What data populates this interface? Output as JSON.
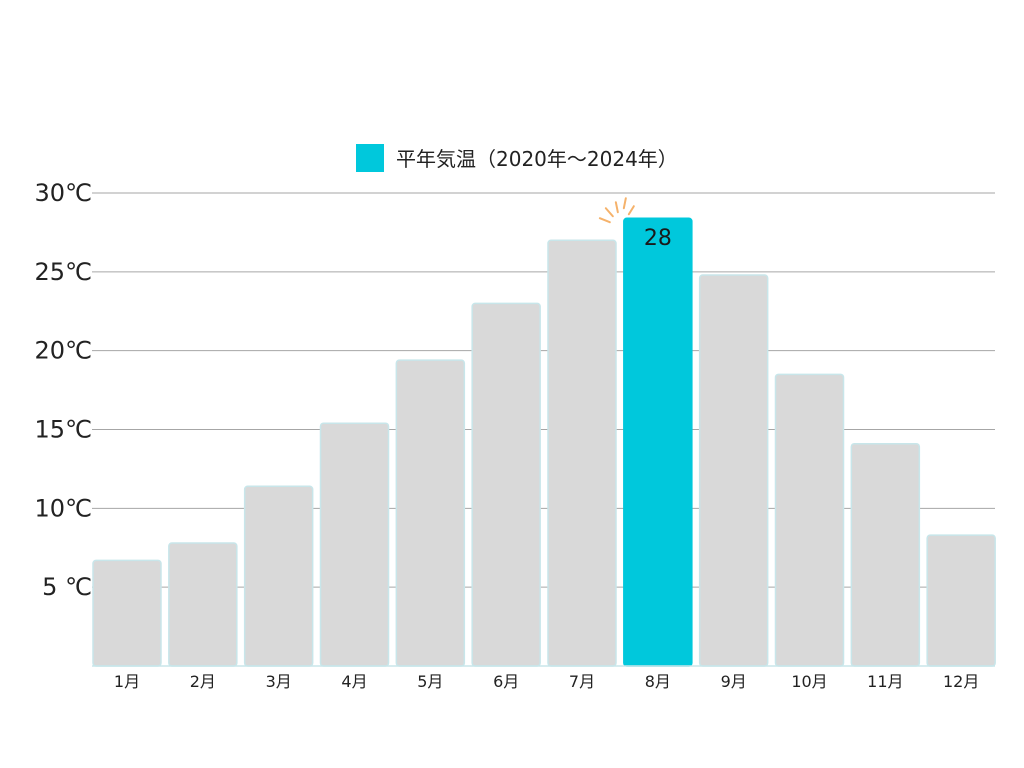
{
  "chart_data": {
    "type": "bar",
    "series": [
      {
        "name": "平年気温（2020年〜2024年）",
        "values": [
          6.7,
          7.8,
          11.4,
          15.4,
          19.4,
          23.0,
          27.0,
          28.4,
          24.8,
          18.5,
          14.1,
          8.3
        ]
      }
    ],
    "categories": [
      "1月",
      "2月",
      "3月",
      "4月",
      "5月",
      "6月",
      "7月",
      "8月",
      "9月",
      "10月",
      "11月",
      "12月"
    ],
    "y_tick_labels": [
      "5 ℃",
      "10℃",
      "15℃",
      "20℃",
      "25℃",
      "30℃"
    ],
    "y_ticks": [
      5,
      10,
      15,
      20,
      25,
      30
    ],
    "ylim": [
      0,
      30
    ],
    "grid": true,
    "legend_position": "top-center",
    "highlight": {
      "category": "8月",
      "label": "28"
    },
    "colors": {
      "bar": "#d9d9d9",
      "bar_edge": "#c8e6ea",
      "highlight": "#00c8dc",
      "grid": "#a6a6a6",
      "spark": "#f5b26b"
    }
  }
}
